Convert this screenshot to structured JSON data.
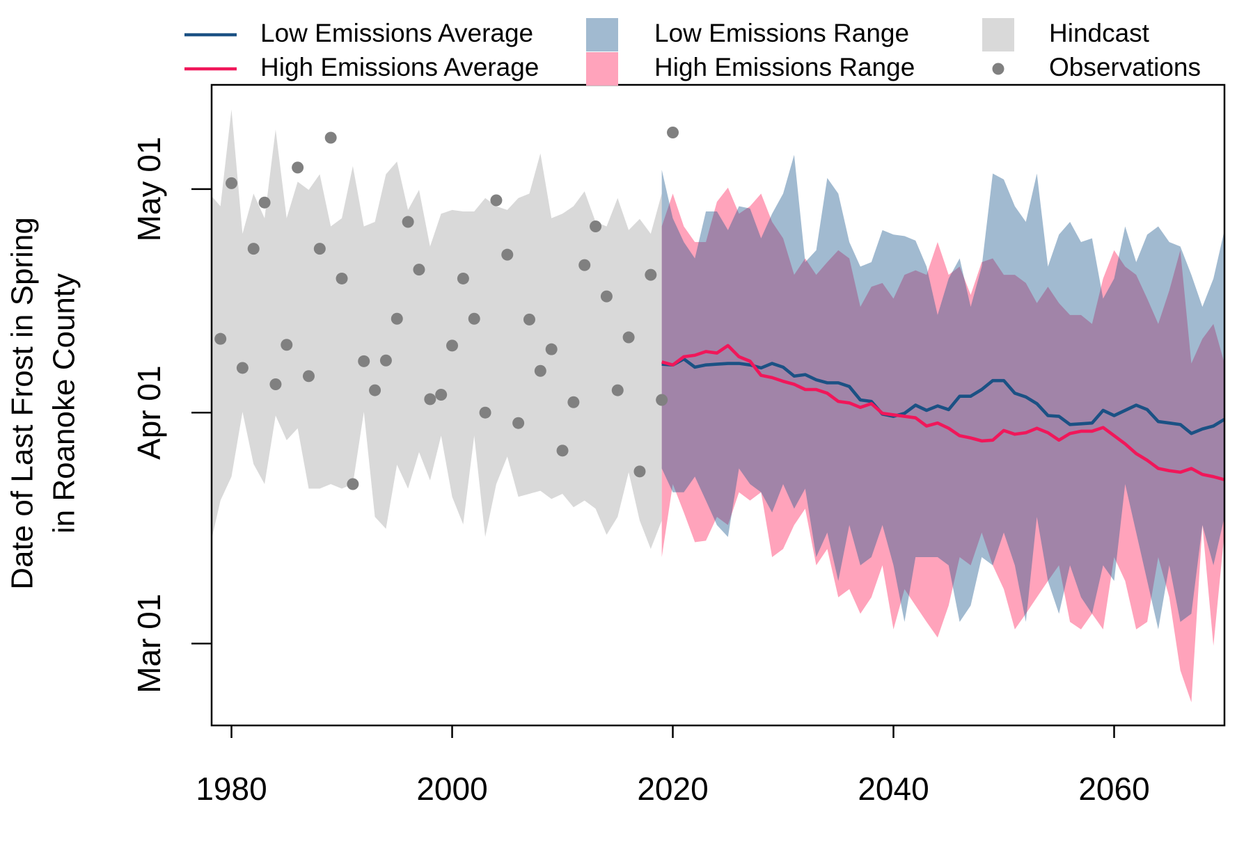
{
  "chart_data": {
    "type": "line",
    "ylabel": [
      "Date of Last Frost in Spring",
      "in Roanoke County"
    ],
    "xlim": [
      1978.2,
      2070
    ],
    "ylim": [
      49,
      135
    ],
    "xticks": [
      1980,
      2000,
      2020,
      2040,
      2060
    ],
    "yticks": [
      {
        "value": 60,
        "label": "Mar 01"
      },
      {
        "value": 91,
        "label": "Apr 01"
      },
      {
        "value": 121,
        "label": "May 01"
      }
    ],
    "series": [
      {
        "name": "Low Emissions Average",
        "kind": "line",
        "color": "#1b5184",
        "x": [
          2019,
          2020,
          2021,
          2022,
          2023,
          2024,
          2025,
          2026,
          2027,
          2028,
          2029,
          2030,
          2031,
          2032,
          2033,
          2034,
          2035,
          2036,
          2037,
          2038,
          2039,
          2040,
          2041,
          2042,
          2043,
          2044,
          2045,
          2046,
          2047,
          2048,
          2049,
          2050,
          2051,
          2052,
          2053,
          2054,
          2055,
          2056,
          2057,
          2058,
          2059,
          2060,
          2061,
          2062,
          2063,
          2064,
          2065,
          2066,
          2067,
          2068,
          2069,
          2070
        ],
        "values": [
          97.5,
          97.4,
          98.2,
          97.1,
          97.4,
          97.5,
          97.6,
          97.6,
          97.4,
          97.0,
          97.6,
          97.1,
          95.9,
          96.1,
          95.4,
          95.0,
          95.0,
          94.5,
          92.7,
          92.5,
          90.8,
          90.5,
          90.9,
          92.0,
          91.3,
          91.9,
          91.4,
          93.2,
          93.2,
          94.1,
          95.3,
          95.3,
          93.6,
          93.1,
          92.2,
          90.6,
          90.5,
          89.4,
          89.5,
          89.6,
          91.3,
          90.6,
          91.3,
          92.0,
          91.4,
          89.8,
          89.6,
          89.4,
          88.2,
          88.8,
          89.2,
          90.1
        ]
      },
      {
        "name": "High Emissions Average",
        "kind": "line",
        "color": "#f0175a",
        "x": [
          2019,
          2020,
          2021,
          2022,
          2023,
          2024,
          2025,
          2026,
          2027,
          2028,
          2029,
          2030,
          2031,
          2032,
          2033,
          2034,
          2035,
          2036,
          2037,
          2038,
          2039,
          2040,
          2041,
          2042,
          2043,
          2044,
          2045,
          2046,
          2047,
          2048,
          2049,
          2050,
          2051,
          2052,
          2053,
          2054,
          2055,
          2056,
          2057,
          2058,
          2059,
          2060,
          2061,
          2062,
          2063,
          2064,
          2065,
          2066,
          2067,
          2068,
          2069,
          2070
        ],
        "values": [
          97.8,
          97.4,
          98.5,
          98.7,
          99.2,
          99.0,
          100.0,
          98.5,
          97.9,
          96.0,
          95.7,
          95.2,
          94.8,
          94.1,
          94.1,
          93.6,
          92.5,
          92.3,
          91.7,
          92.2,
          90.9,
          90.7,
          90.5,
          90.3,
          89.2,
          89.6,
          88.9,
          87.9,
          87.6,
          87.2,
          87.3,
          88.6,
          88.1,
          88.3,
          88.9,
          88.3,
          87.3,
          88.2,
          88.5,
          88.5,
          89.0,
          87.9,
          86.8,
          85.5,
          84.6,
          83.5,
          83.2,
          83.0,
          83.5,
          82.7,
          82.4,
          82.0
        ]
      },
      {
        "name": "Low Emissions Range",
        "kind": "band",
        "color": "#1f5a8e",
        "opacity": 0.42,
        "x": [
          2019,
          2020,
          2021,
          2022,
          2023,
          2024,
          2025,
          2026,
          2027,
          2028,
          2029,
          2030,
          2031,
          2032,
          2033,
          2034,
          2035,
          2036,
          2037,
          2038,
          2039,
          2040,
          2041,
          2042,
          2043,
          2044,
          2045,
          2046,
          2047,
          2048,
          2049,
          2050,
          2051,
          2052,
          2053,
          2054,
          2055,
          2056,
          2057,
          2058,
          2059,
          2060,
          2061,
          2062,
          2063,
          2064,
          2065,
          2066,
          2067,
          2068,
          2069,
          2070
        ],
        "upper": [
          123.6,
          117.1,
          113.9,
          111.7,
          118.0,
          118.0,
          115.5,
          118.7,
          118.4,
          114.4,
          117.7,
          120.4,
          125.6,
          111.2,
          112.8,
          122.5,
          120.4,
          113.9,
          110.6,
          111.2,
          115.5,
          114.9,
          114.7,
          114.1,
          110.6,
          104.1,
          109.0,
          111.7,
          105.2,
          110.6,
          123.1,
          122.3,
          118.7,
          116.6,
          123.1,
          110.6,
          114.9,
          116.6,
          113.9,
          114.4,
          106.3,
          109.0,
          116.0,
          111.2,
          114.9,
          116.0,
          113.9,
          113.3,
          109.5,
          105.2,
          109.0,
          115.5
        ],
        "lower": [
          83.5,
          80.3,
          80.3,
          82.4,
          79.2,
          75.9,
          74.3,
          83.5,
          81.4,
          80.3,
          77.6,
          81.4,
          78.1,
          80.8,
          71.6,
          74.9,
          68.4,
          75.9,
          70.5,
          71.6,
          75.9,
          70.5,
          62.9,
          71.6,
          71.6,
          71.6,
          70.5,
          62.9,
          65.1,
          71.6,
          70.5,
          74.9,
          70.5,
          62.9,
          77.0,
          68.4,
          64.0,
          70.5,
          66.2,
          64.0,
          70.5,
          68.4,
          81.4,
          74.9,
          68.4,
          61.9,
          70.5,
          62.9,
          64.0,
          75.9,
          70.5,
          77.0
        ]
      },
      {
        "name": "High Emissions Range",
        "kind": "band",
        "color": "#ffa3bb",
        "opacity": 1,
        "x": [
          2019,
          2020,
          2021,
          2022,
          2023,
          2024,
          2025,
          2026,
          2027,
          2028,
          2029,
          2030,
          2031,
          2032,
          2033,
          2034,
          2035,
          2036,
          2037,
          2038,
          2039,
          2040,
          2041,
          2042,
          2043,
          2044,
          2045,
          2046,
          2047,
          2048,
          2049,
          2050,
          2051,
          2052,
          2053,
          2054,
          2055,
          2056,
          2057,
          2058,
          2059,
          2060,
          2061,
          2062,
          2063,
          2064,
          2065,
          2066,
          2067,
          2068,
          2069,
          2070
        ],
        "upper": [
          116.0,
          120.4,
          116.0,
          113.9,
          113.9,
          119.3,
          121.2,
          117.7,
          118.7,
          120.4,
          116.6,
          114.4,
          109.5,
          111.7,
          109.5,
          111.2,
          112.8,
          111.7,
          105.2,
          107.9,
          108.4,
          106.3,
          109.5,
          110.1,
          109.5,
          113.9,
          109.5,
          110.6,
          106.8,
          111.2,
          111.7,
          109.5,
          109.5,
          108.4,
          105.7,
          107.9,
          105.7,
          104.1,
          104.1,
          102.9,
          109.0,
          112.8,
          110.6,
          109.5,
          106.3,
          102.9,
          107.4,
          112.8,
          97.6,
          100.9,
          102.9,
          97.6
        ],
        "lower": [
          71.6,
          81.4,
          77.6,
          73.6,
          73.8,
          77.0,
          75.9,
          80.3,
          79.2,
          80.3,
          71.6,
          72.7,
          75.9,
          78.1,
          70.5,
          72.7,
          66.2,
          67.3,
          64.0,
          66.2,
          70.5,
          61.9,
          67.3,
          65.1,
          62.9,
          60.8,
          65.1,
          71.6,
          70.5,
          74.9,
          70.5,
          67.3,
          61.9,
          64.0,
          66.2,
          68.4,
          70.5,
          62.9,
          61.9,
          64.0,
          61.9,
          71.6,
          68.4,
          61.9,
          62.9,
          71.6,
          66.2,
          56.4,
          52.1,
          75.9,
          59.7,
          74.9
        ]
      },
      {
        "name": "Hindcast",
        "kind": "band",
        "color": "#d9d9d9",
        "opacity": 1,
        "x": [
          1978,
          1979,
          1980,
          1981,
          1982,
          1983,
          1984,
          1985,
          1986,
          1987,
          1988,
          1989,
          1990,
          1991,
          1992,
          1993,
          1994,
          1995,
          1996,
          1997,
          1998,
          1999,
          2000,
          2001,
          2002,
          2003,
          2004,
          2005,
          2006,
          2007,
          2008,
          2009,
          2010,
          2011,
          2012,
          2013,
          2014,
          2015,
          2016,
          2017,
          2018,
          2019
        ],
        "upper": [
          120.4,
          118.7,
          131.7,
          115.0,
          120.4,
          117.1,
          129.0,
          117.1,
          122.0,
          120.9,
          123.0,
          116.0,
          117.1,
          124.1,
          116.0,
          116.6,
          123.0,
          124.7,
          118.2,
          120.9,
          113.3,
          117.7,
          118.2,
          118.0,
          118.0,
          119.8,
          118.7,
          118.2,
          119.8,
          120.4,
          125.8,
          117.1,
          117.7,
          118.7,
          120.7,
          116.6,
          116.0,
          119.8,
          115.5,
          117.0,
          115.0,
          120.4
        ],
        "lower": [
          72.7,
          79.2,
          82.4,
          91.1,
          84.1,
          81.4,
          90.6,
          87.3,
          88.9,
          80.8,
          80.8,
          81.4,
          80.8,
          81.4,
          91.1,
          77.0,
          75.4,
          84.0,
          80.8,
          85.7,
          81.9,
          87.9,
          79.7,
          76.0,
          87.9,
          74.3,
          81.4,
          85.1,
          79.7,
          80.1,
          80.5,
          79.4,
          80.1,
          78.3,
          79.2,
          78.1,
          74.6,
          77.0,
          83.0,
          76.5,
          72.7,
          76.5
        ]
      },
      {
        "name": "Observations",
        "kind": "scatter",
        "color": "#808080",
        "x": [
          1979,
          1980,
          1981,
          1982,
          1983,
          1984,
          1985,
          1986,
          1987,
          1988,
          1989,
          1990,
          1991,
          1992,
          1993,
          1994,
          1995,
          1996,
          1997,
          1998,
          1999,
          2000,
          2001,
          2002,
          2003,
          2004,
          2005,
          2006,
          2007,
          2008,
          2009,
          2010,
          2011,
          2012,
          2013,
          2014,
          2015,
          2016,
          2017,
          2018,
          2019,
          2020
        ],
        "values": [
          100.9,
          121.8,
          97.0,
          113.0,
          119.2,
          94.8,
          100.1,
          123.9,
          95.9,
          113.0,
          127.9,
          109.0,
          81.4,
          97.9,
          94.0,
          98.0,
          103.6,
          116.6,
          110.2,
          92.8,
          93.4,
          100.0,
          109.0,
          103.6,
          91.0,
          119.5,
          112.2,
          89.6,
          103.5,
          96.6,
          99.5,
          85.9,
          92.4,
          110.8,
          116.0,
          106.6,
          94.0,
          101.1,
          83.1,
          109.5,
          92.7,
          128.6
        ]
      }
    ]
  }
}
